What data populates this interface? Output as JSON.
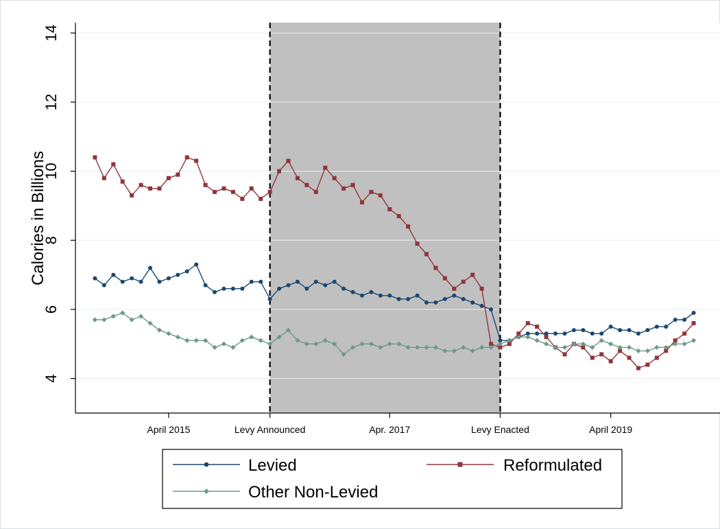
{
  "chart_data": {
    "type": "line",
    "ylabel": "Calories in Billions",
    "xlabel": "",
    "ylim": [
      3.0,
      14.3
    ],
    "yticks": [
      4,
      6,
      8,
      10,
      12,
      14
    ],
    "yticklabels": [
      "4",
      "6",
      "8",
      "10",
      "12",
      "14"
    ],
    "x_range": [
      "2014-07",
      "2020-02"
    ],
    "xticks": [
      {
        "date": "2015-04",
        "label": "April 2015"
      },
      {
        "date": "2016-03",
        "label": "Levy Announced"
      },
      {
        "date": "2017-04",
        "label": "Apr. 2017"
      },
      {
        "date": "2018-04",
        "label": "Levy Enacted"
      },
      {
        "date": "2019-04",
        "label": "April 2019"
      }
    ],
    "shaded_region": {
      "start": "2016-03",
      "end": "2018-04",
      "color": "#c0c0c0"
    },
    "vlines": [
      "2016-03",
      "2018-04"
    ],
    "grid": true,
    "legend_position": "bottom",
    "series": [
      {
        "name": "Levied",
        "color": "#1a476f",
        "marker": "circle",
        "monthly_mean_x": [
          "2014-08",
          "2014-09",
          "2014-10",
          "2014-11",
          "2014-12",
          "2015-01",
          "2015-02",
          "2015-03",
          "2015-04",
          "2015-05",
          "2015-06",
          "2015-07",
          "2015-08",
          "2015-09",
          "2015-10",
          "2015-11",
          "2015-12",
          "2016-01",
          "2016-02",
          "2016-03",
          "2016-04",
          "2016-05",
          "2016-06",
          "2016-07",
          "2016-08",
          "2016-09",
          "2016-10",
          "2016-11",
          "2016-12",
          "2017-01",
          "2017-02",
          "2017-03",
          "2017-04",
          "2017-05",
          "2017-06",
          "2017-07",
          "2017-08",
          "2017-09",
          "2017-10",
          "2017-11",
          "2017-12",
          "2018-01",
          "2018-02",
          "2018-03",
          "2018-04",
          "2018-05",
          "2018-06",
          "2018-07",
          "2018-08",
          "2018-09",
          "2018-10",
          "2018-11",
          "2018-12",
          "2019-01",
          "2019-02",
          "2019-03",
          "2019-04",
          "2019-05",
          "2019-06",
          "2019-07",
          "2019-08",
          "2019-09",
          "2019-10",
          "2019-11",
          "2019-12",
          "2020-01"
        ],
        "values": [
          6.9,
          6.7,
          7.0,
          6.8,
          6.9,
          6.8,
          7.2,
          6.8,
          6.9,
          7.0,
          7.1,
          7.3,
          6.7,
          6.5,
          6.6,
          6.6,
          6.6,
          6.8,
          6.8,
          6.3,
          6.6,
          6.7,
          6.8,
          6.6,
          6.8,
          6.7,
          6.8,
          6.6,
          6.5,
          6.4,
          6.5,
          6.4,
          6.4,
          6.3,
          6.3,
          6.4,
          6.2,
          6.2,
          6.3,
          6.4,
          6.3,
          6.2,
          6.1,
          6.0,
          5.1,
          5.1,
          5.2,
          5.3,
          5.3,
          5.3,
          5.3,
          5.3,
          5.4,
          5.4,
          5.3,
          5.3,
          5.5,
          5.4,
          5.4,
          5.3,
          5.4,
          5.5,
          5.5,
          5.7,
          5.7,
          5.9
        ]
      },
      {
        "name": "Reformulated",
        "color": "#90353b",
        "marker": "square",
        "monthly_mean_x": [
          "2014-08",
          "2014-09",
          "2014-10",
          "2014-11",
          "2014-12",
          "2015-01",
          "2015-02",
          "2015-03",
          "2015-04",
          "2015-05",
          "2015-06",
          "2015-07",
          "2015-08",
          "2015-09",
          "2015-10",
          "2015-11",
          "2015-12",
          "2016-01",
          "2016-02",
          "2016-03",
          "2016-04",
          "2016-05",
          "2016-06",
          "2016-07",
          "2016-08",
          "2016-09",
          "2016-10",
          "2016-11",
          "2016-12",
          "2017-01",
          "2017-02",
          "2017-03",
          "2017-04",
          "2017-05",
          "2017-06",
          "2017-07",
          "2017-08",
          "2017-09",
          "2017-10",
          "2017-11",
          "2017-12",
          "2018-01",
          "2018-02",
          "2018-03",
          "2018-04",
          "2018-05",
          "2018-06",
          "2018-07",
          "2018-08",
          "2018-09",
          "2018-10",
          "2018-11",
          "2018-12",
          "2019-01",
          "2019-02",
          "2019-03",
          "2019-04",
          "2019-05",
          "2019-06",
          "2019-07",
          "2019-08",
          "2019-09",
          "2019-10",
          "2019-11",
          "2019-12",
          "2020-01"
        ],
        "values": [
          10.4,
          9.8,
          10.2,
          9.7,
          9.3,
          9.6,
          9.5,
          9.5,
          9.8,
          9.9,
          10.4,
          10.3,
          9.6,
          9.4,
          9.5,
          9.4,
          9.2,
          9.5,
          9.2,
          9.4,
          10.0,
          10.3,
          9.8,
          9.6,
          9.4,
          10.1,
          9.8,
          9.5,
          9.6,
          9.1,
          9.4,
          9.3,
          8.9,
          8.7,
          8.4,
          7.9,
          7.6,
          7.2,
          6.9,
          6.6,
          6.8,
          7.0,
          6.6,
          5.0,
          4.9,
          5.0,
          5.3,
          5.6,
          5.5,
          5.2,
          4.9,
          4.7,
          5.0,
          4.9,
          4.6,
          4.7,
          4.5,
          4.8,
          4.6,
          4.3,
          4.4,
          4.6,
          4.8,
          5.1,
          5.3,
          5.6
        ]
      },
      {
        "name": "Other Non-Levied",
        "color": "#6e9a8a",
        "marker": "diamond",
        "monthly_mean_x": [
          "2014-08",
          "2014-09",
          "2014-10",
          "2014-11",
          "2014-12",
          "2015-01",
          "2015-02",
          "2015-03",
          "2015-04",
          "2015-05",
          "2015-06",
          "2015-07",
          "2015-08",
          "2015-09",
          "2015-10",
          "2015-11",
          "2015-12",
          "2016-01",
          "2016-02",
          "2016-03",
          "2016-04",
          "2016-05",
          "2016-06",
          "2016-07",
          "2016-08",
          "2016-09",
          "2016-10",
          "2016-11",
          "2016-12",
          "2017-01",
          "2017-02",
          "2017-03",
          "2017-04",
          "2017-05",
          "2017-06",
          "2017-07",
          "2017-08",
          "2017-09",
          "2017-10",
          "2017-11",
          "2017-12",
          "2018-01",
          "2018-02",
          "2018-03",
          "2018-04",
          "2018-05",
          "2018-06",
          "2018-07",
          "2018-08",
          "2018-09",
          "2018-10",
          "2018-11",
          "2018-12",
          "2019-01",
          "2019-02",
          "2019-03",
          "2019-04",
          "2019-05",
          "2019-06",
          "2019-07",
          "2019-08",
          "2019-09",
          "2019-10",
          "2019-11",
          "2019-12",
          "2020-01"
        ],
        "values": [
          5.7,
          5.7,
          5.8,
          5.9,
          5.7,
          5.8,
          5.6,
          5.4,
          5.3,
          5.2,
          5.1,
          5.1,
          5.1,
          4.9,
          5.0,
          4.9,
          5.1,
          5.2,
          5.1,
          5.0,
          5.2,
          5.4,
          5.1,
          5.0,
          5.0,
          5.1,
          5.0,
          4.7,
          4.9,
          5.0,
          5.0,
          4.9,
          5.0,
          5.0,
          4.9,
          4.9,
          4.9,
          4.9,
          4.8,
          4.8,
          4.9,
          4.8,
          4.9,
          4.9,
          5.0,
          5.1,
          5.2,
          5.2,
          5.1,
          5.0,
          4.9,
          4.9,
          5.0,
          5.0,
          4.9,
          5.1,
          5.0,
          4.9,
          4.9,
          4.8,
          4.8,
          4.9,
          4.9,
          5.0,
          5.0,
          5.1
        ]
      }
    ]
  }
}
